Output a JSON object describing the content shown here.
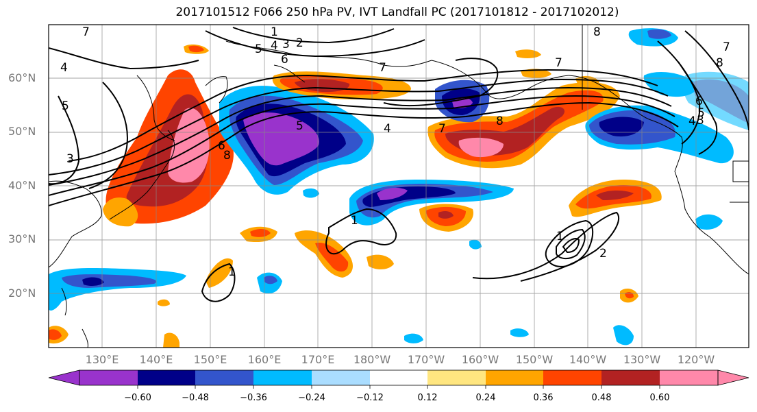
{
  "title": "2017101512 F066 250 hPa PV, IVT Landfall PC (2017101812 - 2017102012)",
  "lat_labels": [
    "60°N",
    "50°N",
    "40°N",
    "30°N",
    "20°N"
  ],
  "lon_labels": [
    "130°E",
    "140°E",
    "150°E",
    "160°E",
    "170°E",
    "180°W",
    "170°W",
    "160°W",
    "150°W",
    "140°W",
    "130°W",
    "120°W"
  ],
  "colorbar": {
    "ticks": [
      "−0.60",
      "−0.48",
      "−0.36",
      "−0.24",
      "−0.12",
      "0.12",
      "0.24",
      "0.36",
      "0.48",
      "0.60"
    ],
    "colors": [
      "#9933cc",
      "#000088",
      "#3355cc",
      "#00bbff",
      "#aaddff",
      "#ffffff",
      "#ffe680",
      "#ffa500",
      "#ff4400",
      "#b22222",
      "#ff88aa"
    ]
  },
  "contour_labels": [
    "7",
    "1",
    "5",
    "4",
    "3",
    "2",
    "6",
    "7",
    "8",
    "7",
    "8",
    "4",
    "5",
    "3",
    "5",
    "6",
    "8",
    "5",
    "4",
    "7",
    "8",
    "7",
    "6",
    "5",
    "4",
    "3",
    "2",
    "1",
    "1",
    "2",
    "1"
  ],
  "map_extent": {
    "lon_min": 120,
    "lon_max": 250,
    "lat_min": 10,
    "lat_max": 70
  }
}
